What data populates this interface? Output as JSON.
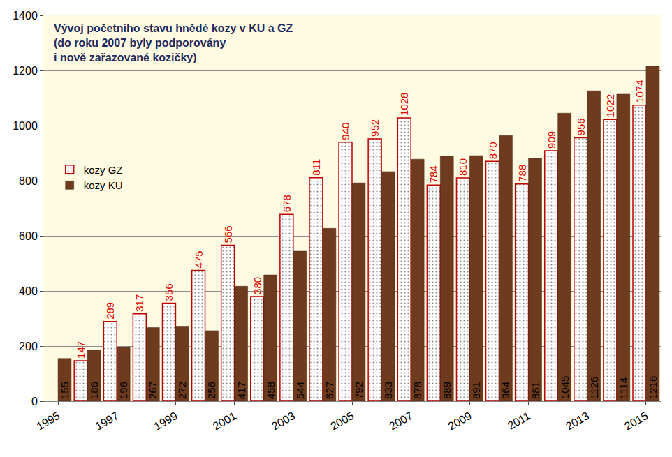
{
  "chart_data": {
    "type": "bar",
    "title": "Vývoj početního stavu hnědé kozy v KU a GZ\n(do roku 2007 byly podporovány\ni nově zařazované kozičky)",
    "categories": [
      "1995",
      null,
      "1997",
      null,
      "1999",
      null,
      "2001",
      null,
      "2003",
      null,
      "2005",
      null,
      "2007",
      null,
      "2009",
      null,
      "2011",
      null,
      "2013",
      null,
      "2015"
    ],
    "series": [
      {
        "name": "kozy GZ",
        "color": "#c00000",
        "marker": "dotted",
        "values": [
          null,
          147,
          289,
          317,
          356,
          475,
          566,
          380,
          678,
          811,
          940,
          952,
          1028,
          784,
          810,
          870,
          788,
          909,
          956,
          1022,
          1074
        ]
      },
      {
        "name": "kozy KU",
        "color": "#6e3b1e",
        "values": [
          155,
          186,
          196,
          267,
          272,
          256,
          417,
          458,
          544,
          627,
          792,
          833,
          878,
          889,
          891,
          964,
          881,
          1045,
          1126,
          1114,
          1216
        ]
      }
    ],
    "ylim": [
      0,
      1400
    ],
    "yticks": [
      0,
      200,
      400,
      600,
      800,
      1000,
      1200,
      1400
    ],
    "grid": true,
    "legend": "left",
    "data_labels": true
  }
}
